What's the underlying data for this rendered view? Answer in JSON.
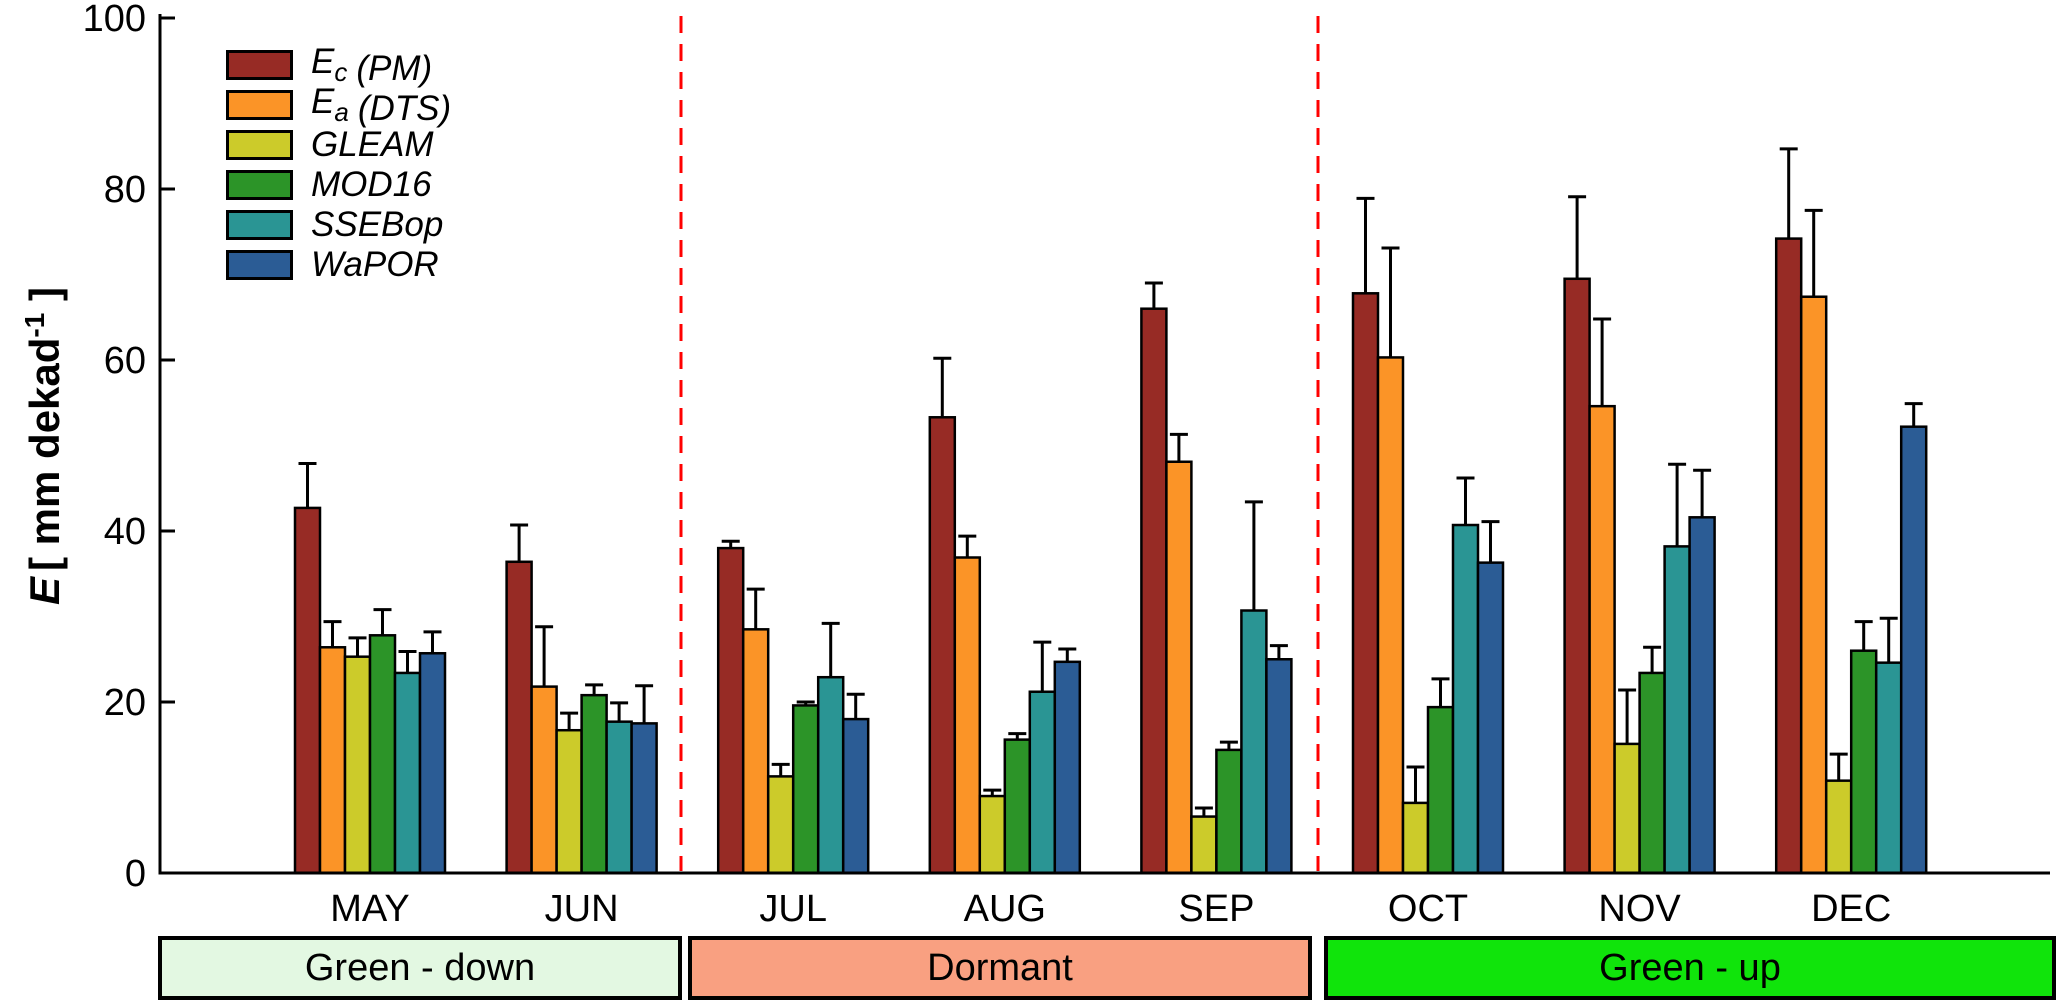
{
  "chart_data": {
    "type": "bar",
    "title": "",
    "xlabel": "",
    "ylabel": "E [ mm dekad-1 ]",
    "ylabel_parts": {
      "main": "E",
      "mid": "[ mm dekad",
      "sup": "-1",
      "close": " ]"
    },
    "ylim": [
      0,
      100
    ],
    "yticks": [
      0,
      20,
      40,
      60,
      80,
      100
    ],
    "grid": false,
    "legend_position": "upper-left-inside",
    "bar_outline_color": "#000000",
    "error_bar_color": "#000000",
    "categories": [
      "MAY",
      "JUN",
      "JUL",
      "AUG",
      "SEP",
      "OCT",
      "NOV",
      "DEC"
    ],
    "series": [
      {
        "name": "Ec (PM)",
        "legend": {
          "main": "E",
          "sub": "c",
          "rest": "(PM)"
        },
        "color": "#972B25",
        "values": [
          42.7,
          36.4,
          38.0,
          53.3,
          66.0,
          67.8,
          69.5,
          74.2
        ],
        "errors_plus": [
          5.2,
          4.3,
          0.8,
          6.9,
          3.0,
          11.1,
          9.6,
          10.5
        ]
      },
      {
        "name": "Ea (DTS)",
        "legend": {
          "main": "E",
          "sub": "a",
          "rest": "(DTS)"
        },
        "color": "#FB9427",
        "values": [
          26.4,
          21.8,
          28.5,
          36.9,
          48.1,
          60.3,
          54.6,
          67.4
        ],
        "errors_plus": [
          3.0,
          7.0,
          4.7,
          2.5,
          3.2,
          12.8,
          10.2,
          10.1
        ]
      },
      {
        "name": "GLEAM",
        "legend": {
          "main": "GLEAM",
          "sub": "",
          "rest": ""
        },
        "color": "#CCCB2A",
        "values": [
          25.3,
          16.7,
          11.3,
          9.0,
          6.6,
          8.2,
          15.1,
          10.8
        ],
        "errors_plus": [
          2.2,
          2.0,
          1.4,
          0.7,
          1.0,
          4.2,
          6.3,
          3.1
        ]
      },
      {
        "name": "MOD16",
        "legend": {
          "main": "MOD16",
          "sub": "",
          "rest": ""
        },
        "color": "#2C9428",
        "values": [
          27.8,
          20.8,
          19.6,
          15.6,
          14.4,
          19.4,
          23.4,
          26.0
        ],
        "errors_plus": [
          3.0,
          1.2,
          0.4,
          0.7,
          0.9,
          3.3,
          3.0,
          3.4
        ]
      },
      {
        "name": "SSEBop",
        "legend": {
          "main": "SSEBop",
          "sub": "",
          "rest": ""
        },
        "color": "#2A9594",
        "values": [
          23.4,
          17.7,
          22.9,
          21.2,
          30.7,
          40.7,
          38.2,
          24.6
        ],
        "errors_plus": [
          2.5,
          2.2,
          6.3,
          5.8,
          12.7,
          5.5,
          9.6,
          5.2
        ]
      },
      {
        "name": "WaPOR",
        "legend": {
          "main": "WaPOR",
          "sub": "",
          "rest": ""
        },
        "color": "#2B5C95",
        "values": [
          25.7,
          17.5,
          18.0,
          24.7,
          25.0,
          36.3,
          41.6,
          52.2
        ],
        "errors_plus": [
          2.5,
          4.4,
          2.9,
          1.5,
          1.6,
          4.8,
          5.5,
          2.7
        ]
      }
    ],
    "separators": {
      "color": "#FF0000",
      "style": "dashed",
      "after_category_index": [
        1,
        4
      ]
    },
    "season_bands": [
      {
        "label": "Green - down",
        "color": "#E3F8E2",
        "categories": [
          "MAY",
          "JUN"
        ]
      },
      {
        "label": "Dormant",
        "color": "#F9A081",
        "categories": [
          "JUL",
          "AUG",
          "SEP"
        ]
      },
      {
        "label": "Green - up",
        "color": "#10E40B",
        "categories": [
          "OCT",
          "NOV",
          "DEC"
        ]
      }
    ]
  }
}
